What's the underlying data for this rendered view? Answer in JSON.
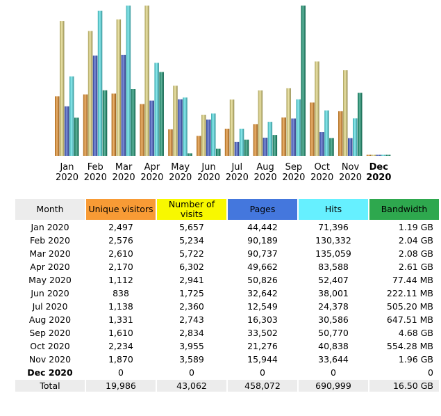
{
  "chart_data": {
    "type": "bar",
    "categories": [
      "Jan 2020",
      "Feb 2020",
      "Mar 2020",
      "Apr 2020",
      "May 2020",
      "Jun 2020",
      "Jul 2020",
      "Aug 2020",
      "Sep 2020",
      "Oct 2020",
      "Nov 2020",
      "Dec 2020"
    ],
    "month_labels": [
      "Jan",
      "Feb",
      "Mar",
      "Apr",
      "May",
      "Jun",
      "Jul",
      "Aug",
      "Sep",
      "Oct",
      "Nov",
      "Dec"
    ],
    "year_label": "2020",
    "current_month_index": 11,
    "series": [
      {
        "name": "Unique visitors",
        "color": "#e38a22",
        "values": [
          2497,
          2576,
          2610,
          2170,
          1112,
          838,
          1138,
          1331,
          1610,
          2234,
          1870,
          0
        ]
      },
      {
        "name": "Number of visits",
        "color": "#e3d77a",
        "values": [
          5657,
          5234,
          5722,
          6302,
          2941,
          1725,
          2360,
          2743,
          2834,
          3955,
          3589,
          0
        ]
      },
      {
        "name": "Pages",
        "color": "#3b55c7",
        "values": [
          44442,
          90189,
          90737,
          49662,
          50826,
          32642,
          12549,
          16303,
          33502,
          21276,
          15944,
          0
        ]
      },
      {
        "name": "Hits",
        "color": "#4ee0e6",
        "values": [
          71396,
          130332,
          135059,
          83588,
          52407,
          38001,
          24378,
          30586,
          50770,
          40838,
          33644,
          0
        ]
      },
      {
        "name": "Bandwidth (GB)",
        "color": "#0d8f6a",
        "values": [
          1.19,
          2.04,
          2.08,
          2.61,
          0.07744,
          0.22211,
          0.5052,
          0.64751,
          4.68,
          0.55428,
          1.96,
          0
        ]
      }
    ]
  },
  "table": {
    "headers": {
      "month": "Month",
      "visitors": "Unique visitors",
      "visits": "Number of visits",
      "pages": "Pages",
      "hits": "Hits",
      "bandwidth": "Bandwidth"
    },
    "rows": [
      {
        "month": "Jan 2020",
        "visitors": "2,497",
        "visits": "5,657",
        "pages": "44,442",
        "hits": "71,396",
        "bandwidth": "1.19 GB"
      },
      {
        "month": "Feb 2020",
        "visitors": "2,576",
        "visits": "5,234",
        "pages": "90,189",
        "hits": "130,332",
        "bandwidth": "2.04 GB"
      },
      {
        "month": "Mar 2020",
        "visitors": "2,610",
        "visits": "5,722",
        "pages": "90,737",
        "hits": "135,059",
        "bandwidth": "2.08 GB"
      },
      {
        "month": "Apr 2020",
        "visitors": "2,170",
        "visits": "6,302",
        "pages": "49,662",
        "hits": "83,588",
        "bandwidth": "2.61 GB"
      },
      {
        "month": "May 2020",
        "visitors": "1,112",
        "visits": "2,941",
        "pages": "50,826",
        "hits": "52,407",
        "bandwidth": "77.44 MB"
      },
      {
        "month": "Jun 2020",
        "visitors": "838",
        "visits": "1,725",
        "pages": "32,642",
        "hits": "38,001",
        "bandwidth": "222.11 MB"
      },
      {
        "month": "Jul 2020",
        "visitors": "1,138",
        "visits": "2,360",
        "pages": "12,549",
        "hits": "24,378",
        "bandwidth": "505.20 MB"
      },
      {
        "month": "Aug 2020",
        "visitors": "1,331",
        "visits": "2,743",
        "pages": "16,303",
        "hits": "30,586",
        "bandwidth": "647.51 MB"
      },
      {
        "month": "Sep 2020",
        "visitors": "1,610",
        "visits": "2,834",
        "pages": "33,502",
        "hits": "50,770",
        "bandwidth": "4.68 GB"
      },
      {
        "month": "Oct 2020",
        "visitors": "2,234",
        "visits": "3,955",
        "pages": "21,276",
        "hits": "40,838",
        "bandwidth": "554.28 MB"
      },
      {
        "month": "Nov 2020",
        "visitors": "1,870",
        "visits": "3,589",
        "pages": "15,944",
        "hits": "33,644",
        "bandwidth": "1.96 GB"
      },
      {
        "month": "Dec 2020",
        "visitors": "0",
        "visits": "0",
        "pages": "0",
        "hits": "0",
        "bandwidth": "0"
      }
    ],
    "total": {
      "month": "Total",
      "visitors": "19,986",
      "visits": "43,062",
      "pages": "458,072",
      "hits": "690,999",
      "bandwidth": "16.50 GB"
    }
  }
}
